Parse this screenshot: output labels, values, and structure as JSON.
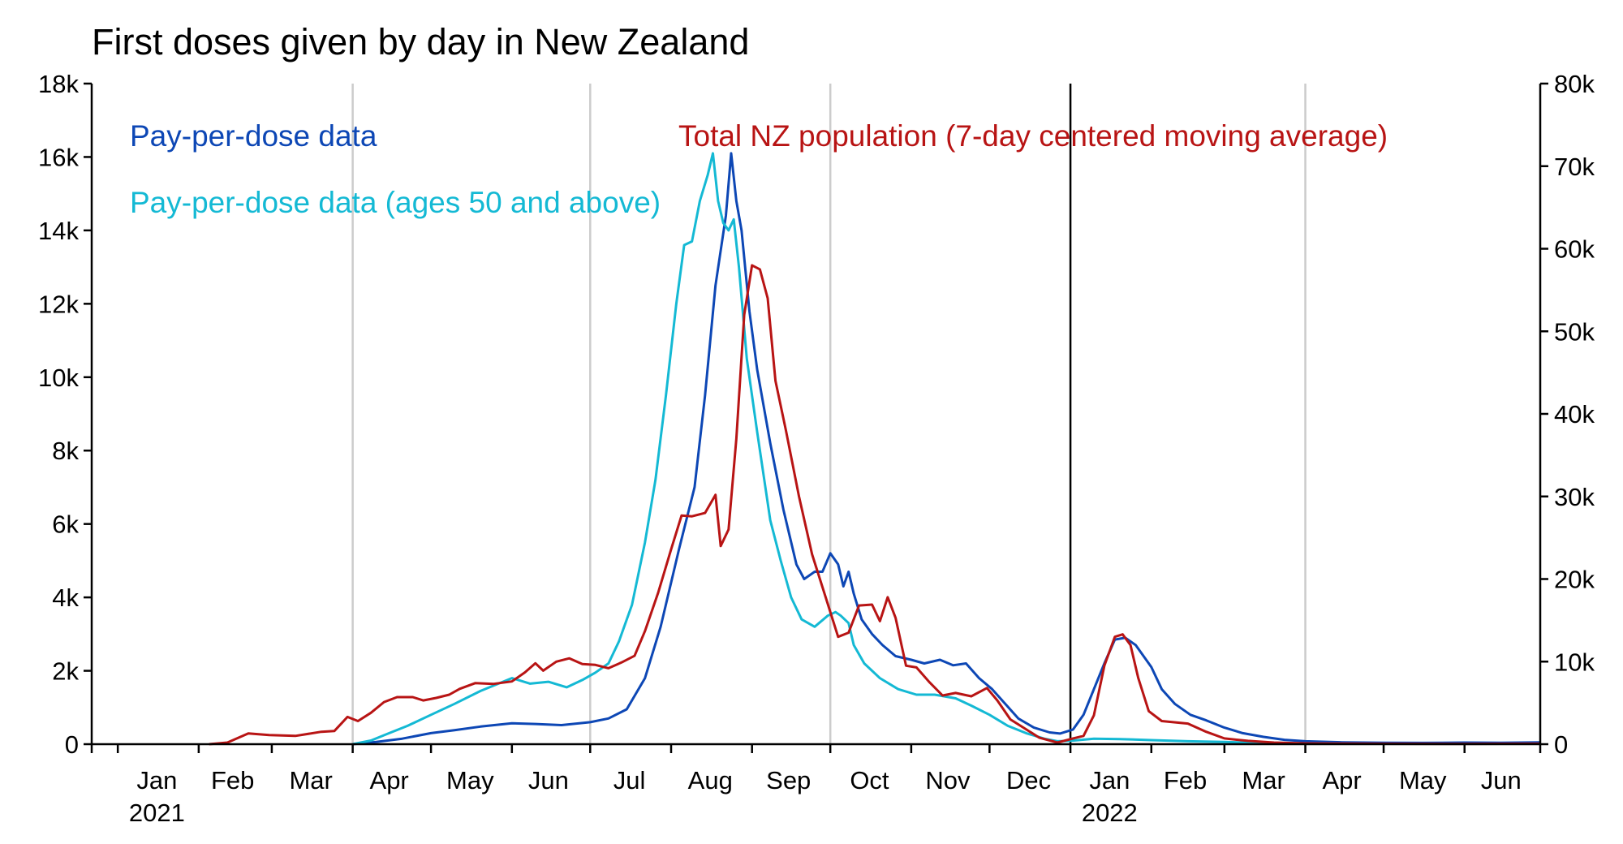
{
  "chart_data": {
    "type": "line",
    "title": "First doses given by day in New Zealand",
    "left_axis": {
      "range": [
        0,
        18000
      ],
      "ticks": [
        0,
        2000,
        4000,
        6000,
        8000,
        10000,
        12000,
        14000,
        16000,
        18000
      ],
      "tick_labels": [
        "0",
        "2k",
        "4k",
        "6k",
        "8k",
        "10k",
        "12k",
        "14k",
        "16k",
        "18k"
      ]
    },
    "right_axis": {
      "range": [
        0,
        80000
      ],
      "ticks": [
        0,
        10000,
        20000,
        30000,
        40000,
        50000,
        60000,
        70000,
        80000
      ],
      "tick_labels": [
        "0",
        "10k",
        "20k",
        "30k",
        "40k",
        "50k",
        "60k",
        "70k",
        "80k"
      ]
    },
    "x_axis": {
      "start": "2020-12-22",
      "end": "2022-06-30",
      "month_labels": [
        {
          "date": "2021-01-16",
          "label": "Jan"
        },
        {
          "date": "2021-02-14",
          "label": "Feb"
        },
        {
          "date": "2021-03-16",
          "label": "Mar"
        },
        {
          "date": "2021-04-15",
          "label": "Apr"
        },
        {
          "date": "2021-05-16",
          "label": "May"
        },
        {
          "date": "2021-06-15",
          "label": "Jun"
        },
        {
          "date": "2021-07-16",
          "label": "Jul"
        },
        {
          "date": "2021-08-16",
          "label": "Aug"
        },
        {
          "date": "2021-09-15",
          "label": "Sep"
        },
        {
          "date": "2021-10-16",
          "label": "Oct"
        },
        {
          "date": "2021-11-15",
          "label": "Nov"
        },
        {
          "date": "2021-12-16",
          "label": "Dec"
        },
        {
          "date": "2022-01-16",
          "label": "Jan"
        },
        {
          "date": "2022-02-14",
          "label": "Feb"
        },
        {
          "date": "2022-03-16",
          "label": "Mar"
        },
        {
          "date": "2022-04-15",
          "label": "Apr"
        },
        {
          "date": "2022-05-16",
          "label": "May"
        },
        {
          "date": "2022-06-15",
          "label": "Jun"
        }
      ],
      "month_boundaries": [
        "2021-01-01",
        "2021-02-01",
        "2021-03-01",
        "2021-04-01",
        "2021-05-01",
        "2021-06-01",
        "2021-07-01",
        "2021-08-01",
        "2021-09-01",
        "2021-10-01",
        "2021-11-01",
        "2021-12-01",
        "2022-01-01",
        "2022-02-01",
        "2022-03-01",
        "2022-04-01",
        "2022-05-01",
        "2022-06-01"
      ],
      "year_labels": [
        {
          "date": "2021-01-16",
          "label": "2021"
        },
        {
          "date": "2022-01-16",
          "label": "2022"
        }
      ],
      "quarter_gridlines": [
        "2021-04-01",
        "2021-07-01",
        "2021-10-01",
        "2022-04-01"
      ],
      "year_divider": "2022-01-01"
    },
    "series": [
      {
        "name": "Pay-per-dose data",
        "axis": "left",
        "color": "#0d47b5",
        "points": [
          [
            "2021-04-01",
            0
          ],
          [
            "2021-04-10",
            60
          ],
          [
            "2021-04-20",
            150
          ],
          [
            "2021-05-01",
            300
          ],
          [
            "2021-05-10",
            380
          ],
          [
            "2021-05-20",
            480
          ],
          [
            "2021-06-01",
            570
          ],
          [
            "2021-06-10",
            550
          ],
          [
            "2021-06-20",
            520
          ],
          [
            "2021-07-01",
            600
          ],
          [
            "2021-07-08",
            700
          ],
          [
            "2021-07-15",
            950
          ],
          [
            "2021-07-22",
            1800
          ],
          [
            "2021-07-28",
            3200
          ],
          [
            "2021-08-04",
            5300
          ],
          [
            "2021-08-10",
            7000
          ],
          [
            "2021-08-14",
            9500
          ],
          [
            "2021-08-18",
            12500
          ],
          [
            "2021-08-22",
            14400
          ],
          [
            "2021-08-24",
            16100
          ],
          [
            "2021-08-26",
            14800
          ],
          [
            "2021-08-28",
            14000
          ],
          [
            "2021-08-31",
            11800
          ],
          [
            "2021-09-03",
            10200
          ],
          [
            "2021-09-08",
            8200
          ],
          [
            "2021-09-13",
            6400
          ],
          [
            "2021-09-18",
            4900
          ],
          [
            "2021-09-21",
            4500
          ],
          [
            "2021-09-25",
            4700
          ],
          [
            "2021-09-28",
            4700
          ],
          [
            "2021-10-01",
            5200
          ],
          [
            "2021-10-04",
            4900
          ],
          [
            "2021-10-06",
            4300
          ],
          [
            "2021-10-08",
            4700
          ],
          [
            "2021-10-10",
            4100
          ],
          [
            "2021-10-13",
            3400
          ],
          [
            "2021-10-17",
            3000
          ],
          [
            "2021-10-21",
            2700
          ],
          [
            "2021-10-26",
            2400
          ],
          [
            "2021-11-01",
            2300
          ],
          [
            "2021-11-06",
            2200
          ],
          [
            "2021-11-12",
            2300
          ],
          [
            "2021-11-17",
            2150
          ],
          [
            "2021-11-22",
            2200
          ],
          [
            "2021-11-27",
            1800
          ],
          [
            "2021-12-02",
            1500
          ],
          [
            "2021-12-07",
            1100
          ],
          [
            "2021-12-12",
            700
          ],
          [
            "2021-12-18",
            450
          ],
          [
            "2021-12-24",
            320
          ],
          [
            "2021-12-28",
            290
          ],
          [
            "2022-01-02",
            400
          ],
          [
            "2022-01-06",
            800
          ],
          [
            "2022-01-10",
            1500
          ],
          [
            "2022-01-14",
            2200
          ],
          [
            "2022-01-18",
            2850
          ],
          [
            "2022-01-22",
            2900
          ],
          [
            "2022-01-26",
            2700
          ],
          [
            "2022-02-01",
            2100
          ],
          [
            "2022-02-05",
            1500
          ],
          [
            "2022-02-10",
            1100
          ],
          [
            "2022-02-16",
            800
          ],
          [
            "2022-02-22",
            650
          ],
          [
            "2022-03-01",
            450
          ],
          [
            "2022-03-08",
            300
          ],
          [
            "2022-03-16",
            200
          ],
          [
            "2022-03-24",
            120
          ],
          [
            "2022-04-01",
            80
          ],
          [
            "2022-04-15",
            50
          ],
          [
            "2022-05-01",
            40
          ],
          [
            "2022-05-16",
            35
          ],
          [
            "2022-06-01",
            45
          ],
          [
            "2022-06-15",
            40
          ],
          [
            "2022-06-30",
            50
          ]
        ]
      },
      {
        "name": "Pay-per-dose data (ages 50 and above)",
        "axis": "left",
        "color": "#14b9d4",
        "points": [
          [
            "2021-04-01",
            0
          ],
          [
            "2021-04-08",
            100
          ],
          [
            "2021-04-15",
            300
          ],
          [
            "2021-04-22",
            500
          ],
          [
            "2021-05-01",
            800
          ],
          [
            "2021-05-10",
            1100
          ],
          [
            "2021-05-20",
            1450
          ],
          [
            "2021-06-01",
            1800
          ],
          [
            "2021-06-08",
            1650
          ],
          [
            "2021-06-15",
            1700
          ],
          [
            "2021-06-22",
            1550
          ],
          [
            "2021-06-28",
            1750
          ],
          [
            "2021-07-03",
            1950
          ],
          [
            "2021-07-08",
            2200
          ],
          [
            "2021-07-12",
            2800
          ],
          [
            "2021-07-17",
            3800
          ],
          [
            "2021-07-22",
            5500
          ],
          [
            "2021-07-26",
            7200
          ],
          [
            "2021-07-30",
            9500
          ],
          [
            "2021-08-03",
            12000
          ],
          [
            "2021-08-06",
            13600
          ],
          [
            "2021-08-09",
            13700
          ],
          [
            "2021-08-12",
            14800
          ],
          [
            "2021-08-15",
            15500
          ],
          [
            "2021-08-17",
            16100
          ],
          [
            "2021-08-19",
            14800
          ],
          [
            "2021-08-21",
            14200
          ],
          [
            "2021-08-23",
            14000
          ],
          [
            "2021-08-25",
            14300
          ],
          [
            "2021-08-27",
            13000
          ],
          [
            "2021-08-30",
            10500
          ],
          [
            "2021-09-03",
            8500
          ],
          [
            "2021-09-08",
            6100
          ],
          [
            "2021-09-12",
            5000
          ],
          [
            "2021-09-16",
            4000
          ],
          [
            "2021-09-20",
            3400
          ],
          [
            "2021-09-25",
            3200
          ],
          [
            "2021-09-30",
            3500
          ],
          [
            "2021-10-03",
            3600
          ],
          [
            "2021-10-05",
            3500
          ],
          [
            "2021-10-08",
            3300
          ],
          [
            "2021-10-10",
            2700
          ],
          [
            "2021-10-14",
            2200
          ],
          [
            "2021-10-20",
            1800
          ],
          [
            "2021-10-27",
            1500
          ],
          [
            "2021-11-03",
            1350
          ],
          [
            "2021-11-10",
            1350
          ],
          [
            "2021-11-18",
            1250
          ],
          [
            "2021-11-24",
            1050
          ],
          [
            "2021-12-01",
            800
          ],
          [
            "2021-12-08",
            500
          ],
          [
            "2021-12-15",
            300
          ],
          [
            "2021-12-22",
            150
          ],
          [
            "2021-12-27",
            80
          ],
          [
            "2022-01-01",
            90
          ],
          [
            "2022-01-10",
            150
          ],
          [
            "2022-01-20",
            140
          ],
          [
            "2022-02-01",
            110
          ],
          [
            "2022-02-15",
            80
          ],
          [
            "2022-03-01",
            60
          ],
          [
            "2022-03-16",
            30
          ],
          [
            "2022-04-01",
            15
          ],
          [
            "2022-04-20",
            10
          ]
        ]
      },
      {
        "name": "Total NZ population (7-day centered moving average)",
        "axis": "right",
        "color": "#b81414",
        "points": [
          [
            "2021-02-05",
            0
          ],
          [
            "2021-02-12",
            200
          ],
          [
            "2021-02-20",
            1300
          ],
          [
            "2021-02-28",
            1100
          ],
          [
            "2021-03-10",
            1000
          ],
          [
            "2021-03-20",
            1500
          ],
          [
            "2021-03-25",
            1600
          ],
          [
            "2021-03-30",
            3300
          ],
          [
            "2021-04-03",
            2800
          ],
          [
            "2021-04-08",
            3800
          ],
          [
            "2021-04-13",
            5100
          ],
          [
            "2021-04-18",
            5700
          ],
          [
            "2021-04-24",
            5700
          ],
          [
            "2021-04-28",
            5300
          ],
          [
            "2021-05-03",
            5600
          ],
          [
            "2021-05-08",
            6000
          ],
          [
            "2021-05-12",
            6700
          ],
          [
            "2021-05-18",
            7400
          ],
          [
            "2021-05-25",
            7300
          ],
          [
            "2021-06-01",
            7600
          ],
          [
            "2021-06-06",
            8700
          ],
          [
            "2021-06-10",
            9800
          ],
          [
            "2021-06-13",
            8900
          ],
          [
            "2021-06-18",
            10000
          ],
          [
            "2021-06-23",
            10400
          ],
          [
            "2021-06-28",
            9700
          ],
          [
            "2021-07-03",
            9600
          ],
          [
            "2021-07-08",
            9200
          ],
          [
            "2021-07-13",
            9900
          ],
          [
            "2021-07-18",
            10700
          ],
          [
            "2021-07-22",
            13700
          ],
          [
            "2021-07-27",
            18300
          ],
          [
            "2021-08-01",
            23600
          ],
          [
            "2021-08-05",
            27700
          ],
          [
            "2021-08-09",
            27600
          ],
          [
            "2021-08-14",
            28000
          ],
          [
            "2021-08-18",
            30200
          ],
          [
            "2021-08-20",
            24000
          ],
          [
            "2021-08-23",
            26000
          ],
          [
            "2021-08-26",
            37000
          ],
          [
            "2021-08-29",
            52000
          ],
          [
            "2021-09-01",
            58000
          ],
          [
            "2021-09-04",
            57500
          ],
          [
            "2021-09-07",
            54000
          ],
          [
            "2021-09-10",
            44000
          ],
          [
            "2021-09-14",
            38000
          ],
          [
            "2021-09-19",
            30000
          ],
          [
            "2021-09-24",
            23000
          ],
          [
            "2021-09-30",
            17000
          ],
          [
            "2021-10-04",
            13000
          ],
          [
            "2021-10-08",
            13500
          ],
          [
            "2021-10-12",
            16800
          ],
          [
            "2021-10-17",
            16900
          ],
          [
            "2021-10-20",
            14900
          ],
          [
            "2021-10-23",
            17800
          ],
          [
            "2021-10-26",
            15300
          ],
          [
            "2021-10-30",
            9500
          ],
          [
            "2021-11-03",
            9300
          ],
          [
            "2021-11-08",
            7500
          ],
          [
            "2021-11-13",
            5900
          ],
          [
            "2021-11-18",
            6200
          ],
          [
            "2021-11-24",
            5800
          ],
          [
            "2021-11-30",
            6800
          ],
          [
            "2021-12-04",
            5300
          ],
          [
            "2021-12-09",
            3000
          ],
          [
            "2021-12-14",
            2000
          ],
          [
            "2021-12-20",
            800
          ],
          [
            "2021-12-27",
            200
          ],
          [
            "2022-01-02",
            700
          ],
          [
            "2022-01-06",
            1000
          ],
          [
            "2022-01-10",
            3500
          ],
          [
            "2022-01-14",
            9500
          ],
          [
            "2022-01-18",
            13000
          ],
          [
            "2022-01-21",
            13300
          ],
          [
            "2022-01-24",
            12000
          ],
          [
            "2022-01-27",
            8000
          ],
          [
            "2022-01-31",
            4000
          ],
          [
            "2022-02-05",
            2800
          ],
          [
            "2022-02-15",
            2500
          ],
          [
            "2022-02-22",
            1500
          ],
          [
            "2022-03-01",
            700
          ],
          [
            "2022-03-10",
            400
          ],
          [
            "2022-03-20",
            200
          ],
          [
            "2022-04-01",
            100
          ],
          [
            "2022-04-15",
            70
          ],
          [
            "2022-05-01",
            50
          ],
          [
            "2022-06-01",
            40
          ],
          [
            "2022-06-30",
            60
          ]
        ]
      }
    ],
    "legend": [
      {
        "label": "Pay-per-dose data",
        "color": "#0d47b5",
        "position": "top-left"
      },
      {
        "label": "Pay-per-dose data (ages 50 and above)",
        "color": "#14b9d4",
        "position": "top-left"
      },
      {
        "label": "Total NZ population (7-day centered moving average)",
        "color": "#b81414",
        "position": "top-center"
      }
    ]
  }
}
